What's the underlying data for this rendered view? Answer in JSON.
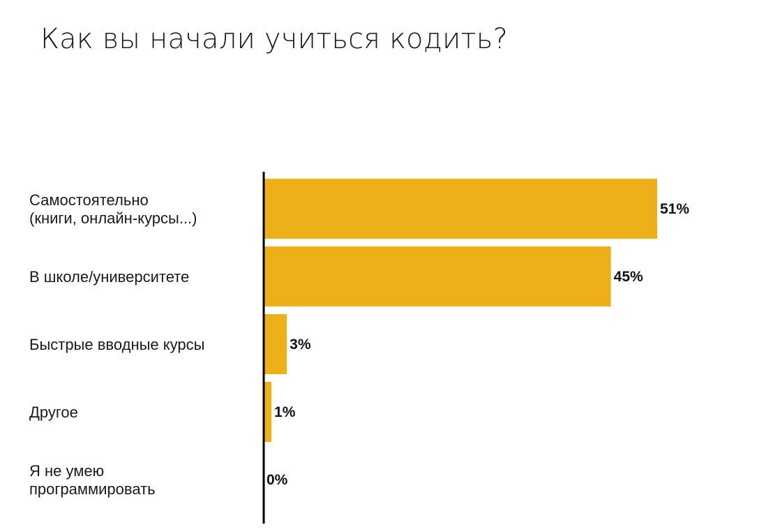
{
  "title": "Как вы начали учиться кодить?",
  "colors": {
    "bar": "#EEB018",
    "axis": "#000000",
    "text": "#1a1a1a"
  },
  "chart_data": {
    "type": "bar",
    "orientation": "horizontal",
    "categories": [
      [
        "Самостоятельно",
        "(книги, онлайн-курсы...)"
      ],
      [
        "В школе/университете"
      ],
      [
        "Быстрые вводные курсы"
      ],
      [
        "Другое"
      ],
      [
        "Я не умею",
        "программировать"
      ]
    ],
    "values": [
      51,
      45,
      3,
      1,
      0
    ],
    "value_labels": [
      "51%",
      "45%",
      "3%",
      "1%",
      "0%"
    ],
    "xlim": [
      0,
      51
    ],
    "grid": false,
    "legend": "none"
  }
}
